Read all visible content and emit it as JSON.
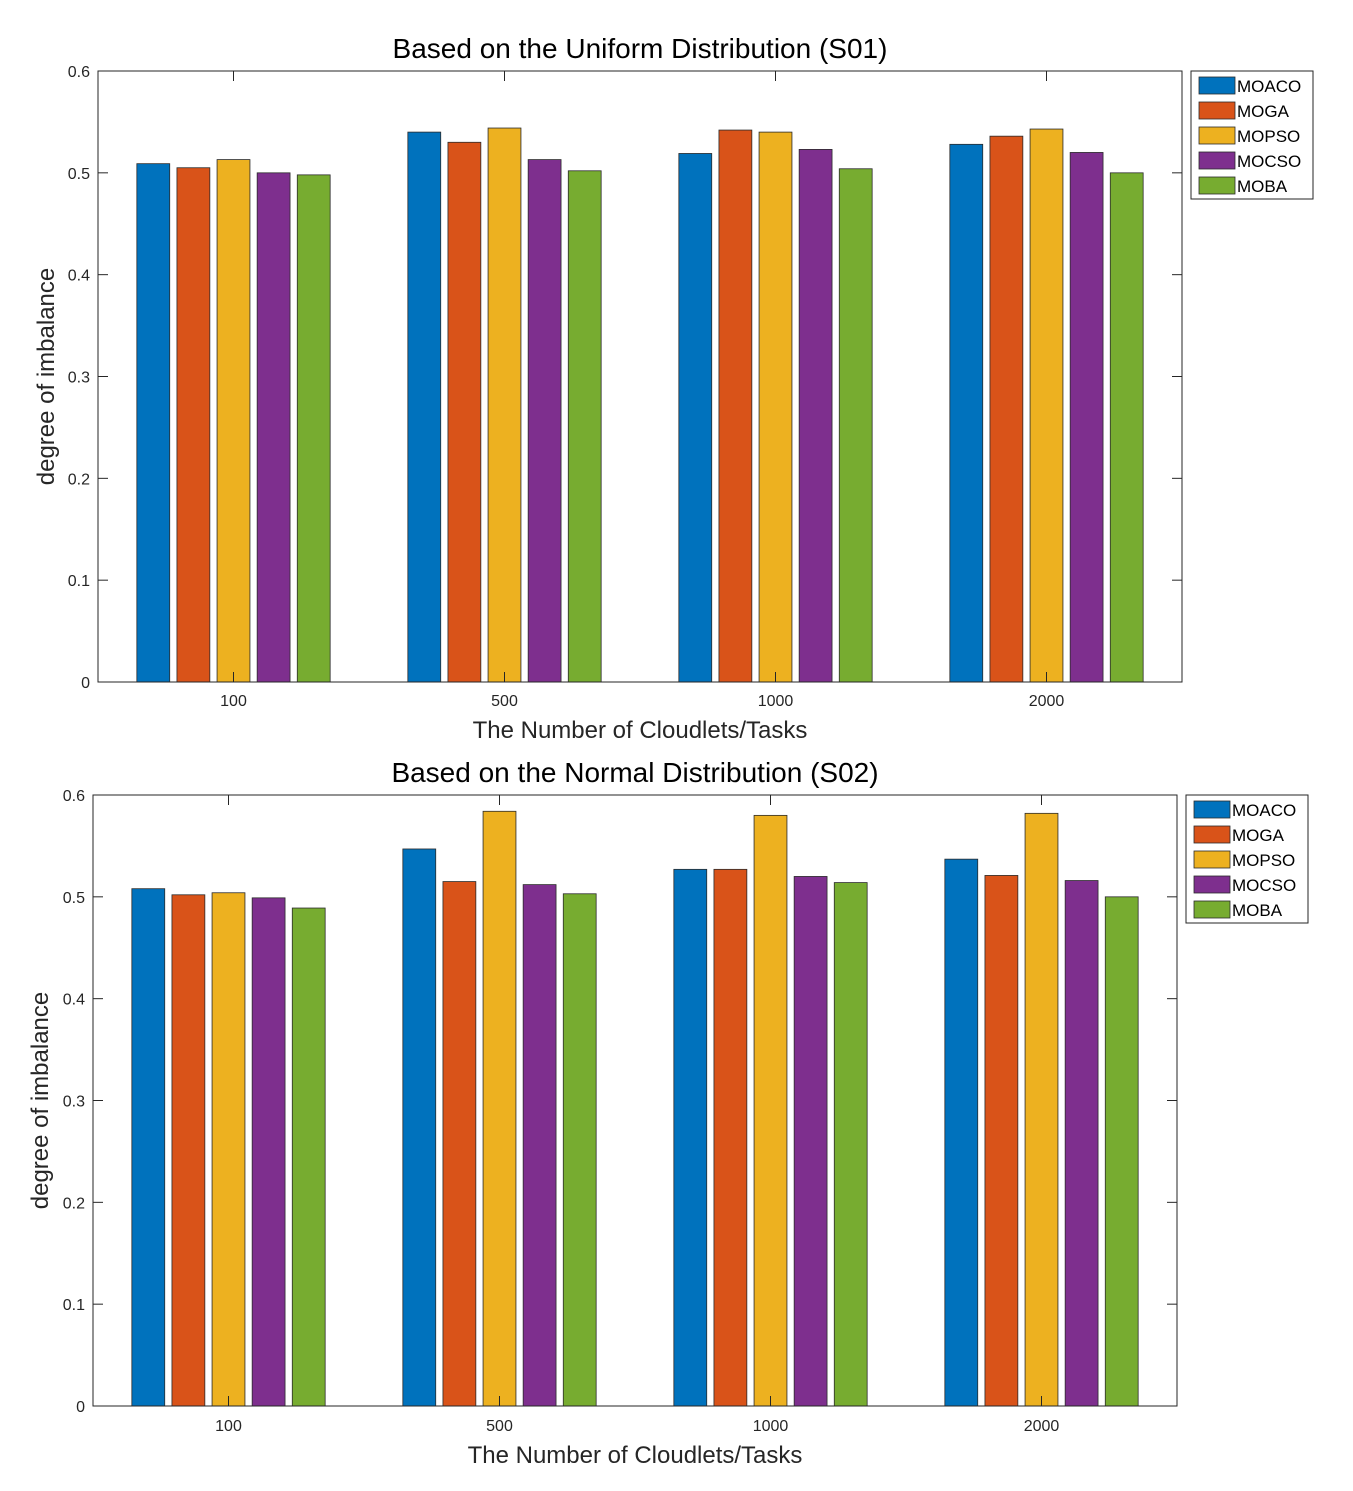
{
  "chart_data": [
    {
      "type": "bar",
      "title": "Based on the Uniform Distribution (S01)",
      "xlabel": "The Number of Cloudlets/Tasks",
      "ylabel": "degree of imbalance",
      "ylim": [
        0,
        0.6
      ],
      "yticks": [
        "0",
        "0.1",
        "0.2",
        "0.3",
        "0.4",
        "0.5",
        "0.6"
      ],
      "categories": [
        "100",
        "500",
        "1000",
        "2000"
      ],
      "legend_position": "outside-top-right",
      "series": [
        {
          "name": "MOACO",
          "color": "#0072BD",
          "values": [
            0.509,
            0.54,
            0.519,
            0.528
          ]
        },
        {
          "name": "MOGA",
          "color": "#D95319",
          "values": [
            0.505,
            0.53,
            0.542,
            0.536
          ]
        },
        {
          "name": "MOPSO",
          "color": "#EDB120",
          "values": [
            0.513,
            0.544,
            0.54,
            0.543
          ]
        },
        {
          "name": "MOCSO",
          "color": "#7E2F8E",
          "values": [
            0.5,
            0.513,
            0.523,
            0.52
          ]
        },
        {
          "name": "MOBA",
          "color": "#77AC30",
          "values": [
            0.498,
            0.502,
            0.504,
            0.5
          ]
        }
      ]
    },
    {
      "type": "bar",
      "title": "Based on the Normal Distribution (S02)",
      "xlabel": "The Number of Cloudlets/Tasks",
      "ylabel": "degree of imbalance",
      "ylim": [
        0,
        0.6
      ],
      "yticks": [
        "0",
        "0.1",
        "0.2",
        "0.3",
        "0.4",
        "0.5",
        "0.6"
      ],
      "categories": [
        "100",
        "500",
        "1000",
        "2000"
      ],
      "legend_position": "outside-top-right",
      "series": [
        {
          "name": "MOACO",
          "color": "#0072BD",
          "values": [
            0.508,
            0.547,
            0.527,
            0.537
          ]
        },
        {
          "name": "MOGA",
          "color": "#D95319",
          "values": [
            0.502,
            0.515,
            0.527,
            0.521
          ]
        },
        {
          "name": "MOPSO",
          "color": "#EDB120",
          "values": [
            0.504,
            0.584,
            0.58,
            0.582
          ]
        },
        {
          "name": "MOCSO",
          "color": "#7E2F8E",
          "values": [
            0.499,
            0.512,
            0.52,
            0.516
          ]
        },
        {
          "name": "MOBA",
          "color": "#77AC30",
          "values": [
            0.489,
            0.503,
            0.514,
            0.5
          ]
        }
      ]
    }
  ]
}
